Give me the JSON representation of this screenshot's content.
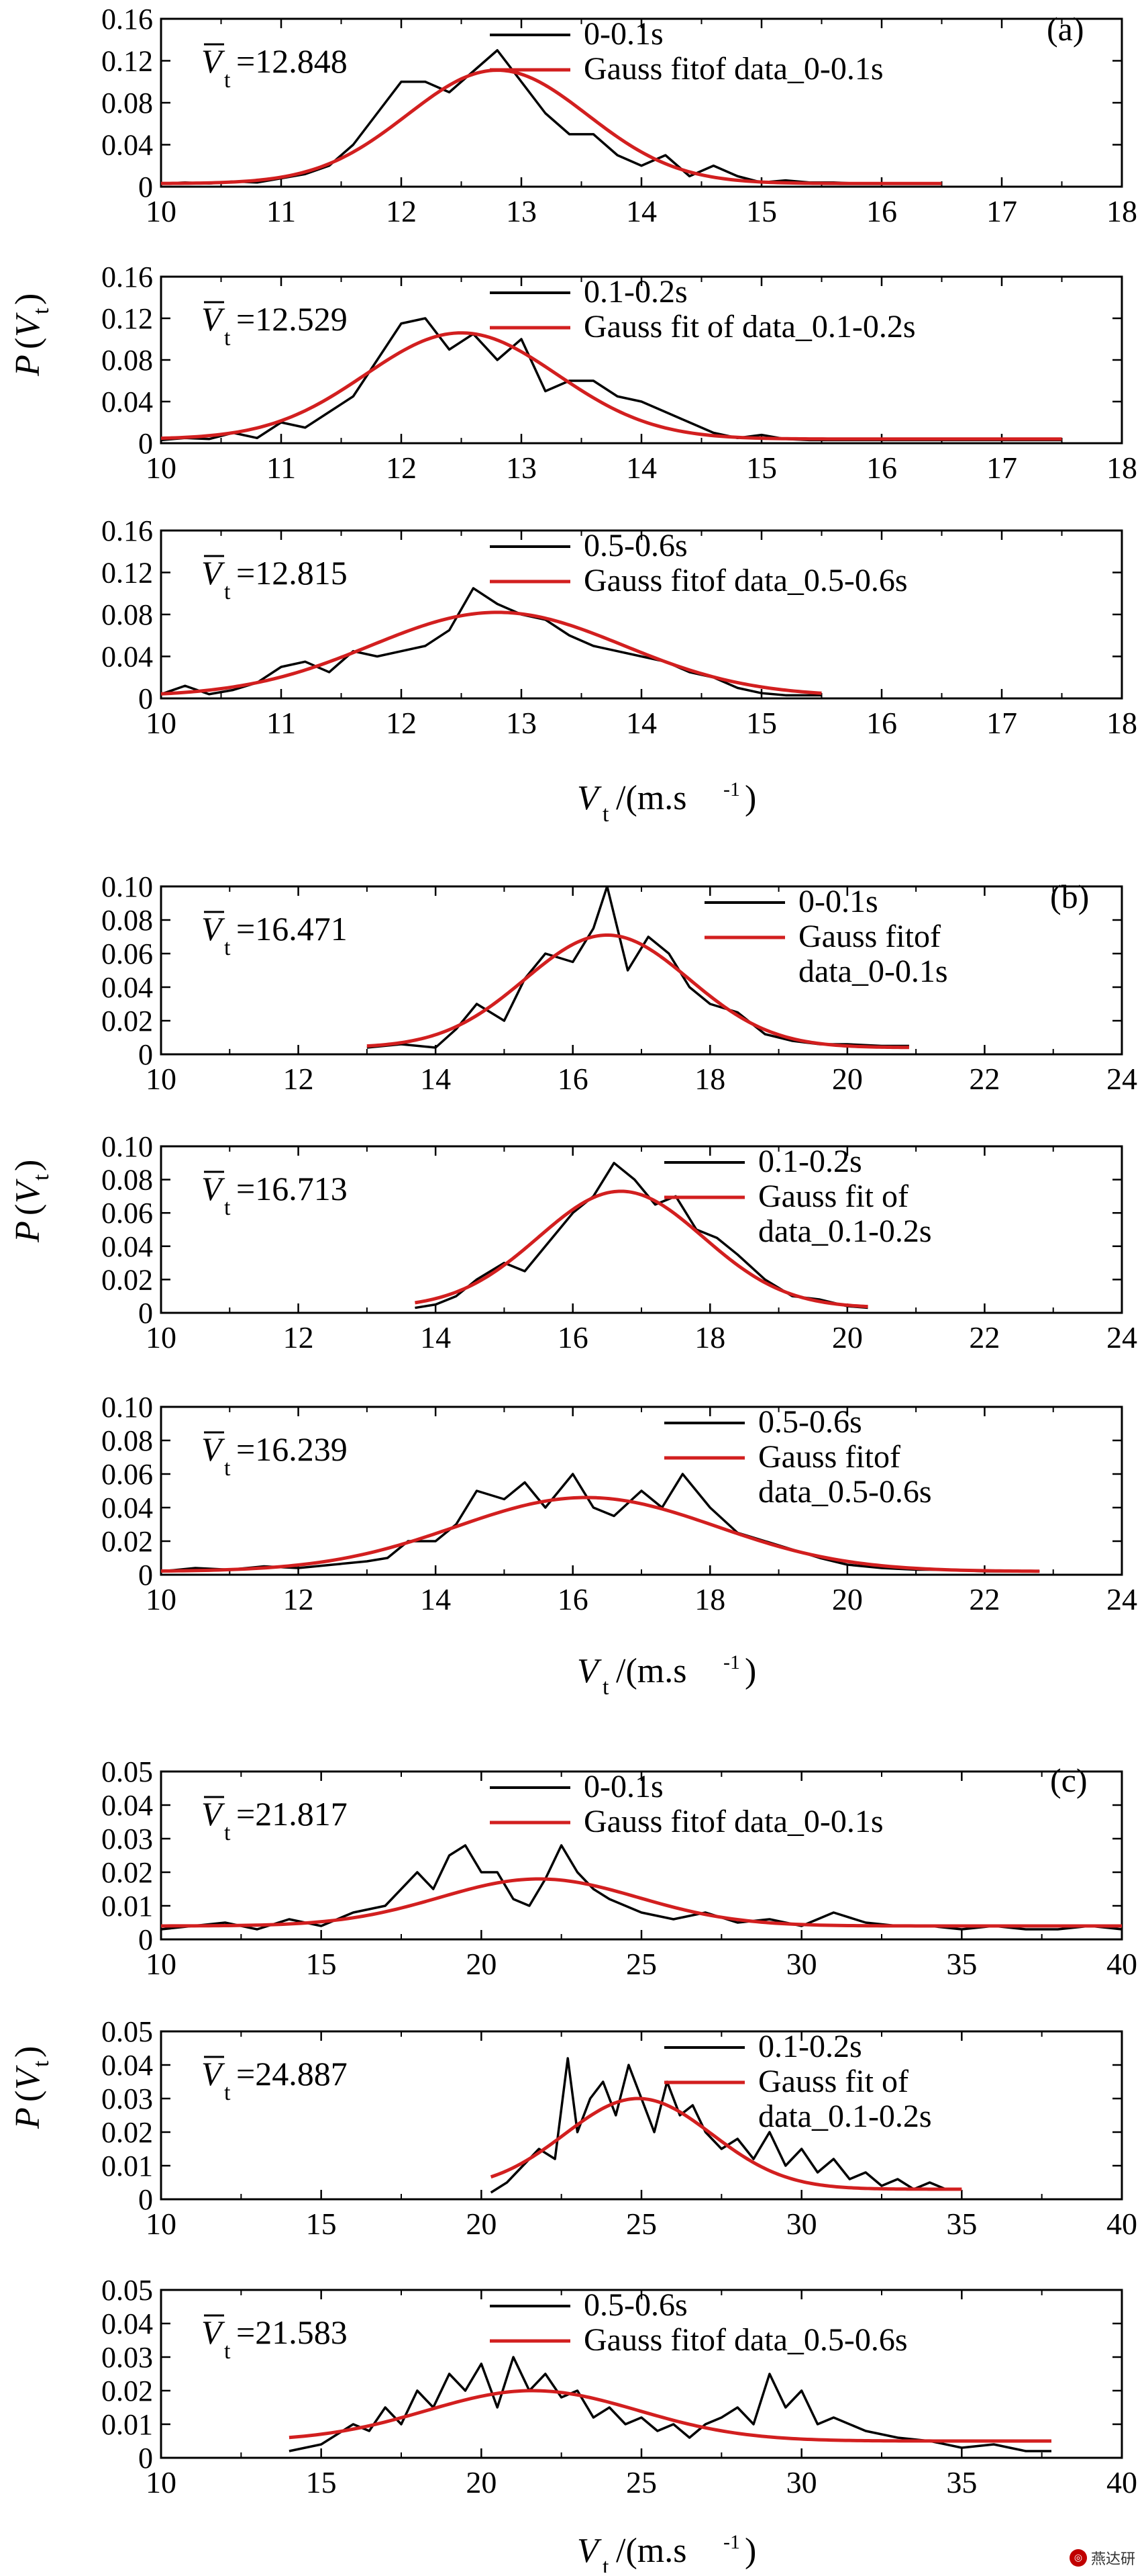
{
  "colors": {
    "data": "#000000",
    "fit": "#d21f1f",
    "axis": "#000000"
  },
  "watermark": {
    "text": "燕达研",
    "icon": "watermark-logo-icon"
  },
  "groups": [
    {
      "label": "(a)",
      "ylabel_main": "P",
      "ylabel_sub": "t",
      "xlabel_main": "V",
      "xlabel_sub": "t",
      "xlabel_unit": "/(m.s",
      "xlabel_exp": "-1",
      "xlabel_close": ")"
    },
    {
      "label": "(b)",
      "ylabel_main": "P",
      "ylabel_sub": "t",
      "xlabel_main": "V",
      "xlabel_sub": "t",
      "xlabel_unit": "/(m.s",
      "xlabel_exp": "-1",
      "xlabel_close": ")"
    },
    {
      "label": "(c)",
      "ylabel_main": "P",
      "ylabel_sub": "t",
      "xlabel_main": "V",
      "xlabel_sub": "t",
      "xlabel_unit": "/(m.s",
      "xlabel_exp": "-1",
      "xlabel_close": ")"
    }
  ],
  "chart_data": [
    {
      "type": "line",
      "group": 0,
      "xlim": [
        10,
        18
      ],
      "ylim": [
        0,
        0.16
      ],
      "xticks": [
        "10",
        "11",
        "12",
        "13",
        "14",
        "15",
        "16",
        "17",
        "18"
      ],
      "yticks": [
        "0",
        "0.04",
        "0.08",
        "0.12",
        "0.16"
      ],
      "mean_label": "=12.848",
      "legend": [
        "0-0.1s",
        "Gauss fitof  data_0-0.1s"
      ],
      "series": [
        {
          "name": "0-0.1s",
          "kind": "data",
          "x": [
            10,
            10.2,
            10.4,
            10.6,
            10.8,
            11,
            11.2,
            11.4,
            11.6,
            11.8,
            12,
            12.2,
            12.4,
            12.6,
            12.8,
            13,
            13.2,
            13.4,
            13.6,
            13.8,
            14,
            14.2,
            14.4,
            14.6,
            14.8,
            15,
            15.2,
            15.4,
            15.6,
            15.8,
            16,
            16.2,
            16.5
          ],
          "y": [
            0.003,
            0.004,
            0.003,
            0.005,
            0.004,
            0.008,
            0.012,
            0.02,
            0.04,
            0.07,
            0.1,
            0.1,
            0.09,
            0.11,
            0.13,
            0.1,
            0.07,
            0.05,
            0.05,
            0.03,
            0.02,
            0.03,
            0.01,
            0.02,
            0.01,
            0.004,
            0.006,
            0.004,
            0.004,
            0.003,
            0.003,
            0.003,
            0.003
          ]
        },
        {
          "name": "Gauss fitof  data_0-0.1s",
          "kind": "fit",
          "mean": 12.8,
          "sigma": 0.75,
          "amp": 0.108,
          "base": 0.003,
          "range": [
            10,
            16.5
          ]
        }
      ]
    },
    {
      "type": "line",
      "group": 0,
      "xlim": [
        10,
        18
      ],
      "ylim": [
        0,
        0.16
      ],
      "xticks": [
        "10",
        "11",
        "12",
        "13",
        "14",
        "15",
        "16",
        "17",
        "18"
      ],
      "yticks": [
        "0",
        "0.04",
        "0.08",
        "0.12",
        "0.16"
      ],
      "mean_label": "=12.529",
      "legend": [
        "0.1-0.2s",
        "Gauss fit of  data_0.1-0.2s"
      ],
      "series": [
        {
          "name": "0.1-0.2s",
          "kind": "data",
          "x": [
            10,
            10.2,
            10.4,
            10.6,
            10.8,
            11,
            11.2,
            11.4,
            11.6,
            11.8,
            12,
            12.2,
            12.4,
            12.6,
            12.8,
            13,
            13.2,
            13.4,
            13.6,
            13.8,
            14,
            14.2,
            14.4,
            14.6,
            14.8,
            15,
            15.2,
            15.4,
            15.6,
            15.8,
            16,
            16.5,
            17,
            17.5
          ],
          "y": [
            0.003,
            0.005,
            0.004,
            0.01,
            0.005,
            0.02,
            0.015,
            0.03,
            0.045,
            0.08,
            0.115,
            0.12,
            0.09,
            0.105,
            0.08,
            0.1,
            0.05,
            0.06,
            0.06,
            0.045,
            0.04,
            0.03,
            0.02,
            0.01,
            0.005,
            0.008,
            0.004,
            0.003,
            0.003,
            0.003,
            0.003,
            0.003,
            0.003,
            0.003
          ]
        },
        {
          "name": "Gauss fit of  data_0.1-0.2s",
          "kind": "fit",
          "mean": 12.5,
          "sigma": 0.8,
          "amp": 0.102,
          "base": 0.004,
          "range": [
            10,
            17.5
          ]
        }
      ]
    },
    {
      "type": "line",
      "group": 0,
      "xlim": [
        10,
        18
      ],
      "ylim": [
        0,
        0.16
      ],
      "xticks": [
        "10",
        "11",
        "12",
        "13",
        "14",
        "15",
        "16",
        "17",
        "18"
      ],
      "yticks": [
        "0",
        "0.04",
        "0.08",
        "0.12",
        "0.16"
      ],
      "mean_label": "=12.815",
      "legend": [
        "0.5-0.6s",
        "Gauss fitof  data_0.5-0.6s"
      ],
      "series": [
        {
          "name": "0.5-0.6s",
          "kind": "data",
          "x": [
            10,
            10.2,
            10.4,
            10.6,
            10.8,
            11,
            11.2,
            11.4,
            11.6,
            11.8,
            12,
            12.2,
            12.4,
            12.6,
            12.8,
            13,
            13.2,
            13.4,
            13.6,
            13.8,
            14,
            14.2,
            14.4,
            14.6,
            14.8,
            15,
            15.2,
            15.5
          ],
          "y": [
            0.004,
            0.012,
            0.004,
            0.008,
            0.015,
            0.03,
            0.035,
            0.025,
            0.045,
            0.04,
            0.045,
            0.05,
            0.065,
            0.105,
            0.09,
            0.08,
            0.075,
            0.06,
            0.05,
            0.045,
            0.04,
            0.035,
            0.025,
            0.02,
            0.01,
            0.005,
            0.003,
            0.003
          ]
        },
        {
          "name": "Gauss fitof  data_0.5-0.6s",
          "kind": "fit",
          "mean": 12.8,
          "sigma": 1.05,
          "amp": 0.08,
          "base": 0.002,
          "range": [
            10,
            15.5
          ]
        }
      ]
    },
    {
      "type": "line",
      "group": 1,
      "xlim": [
        10,
        24
      ],
      "ylim": [
        0,
        0.1
      ],
      "xticks": [
        "10",
        "12",
        "14",
        "16",
        "18",
        "20",
        "22",
        "24"
      ],
      "yticks": [
        "0",
        "0.02",
        "0.04",
        "0.06",
        "0.08",
        "0.10"
      ],
      "mean_label": "=16.471",
      "legend": [
        "0-0.1s",
        "Gauss fitof",
        "data_0-0.1s"
      ],
      "series": [
        {
          "name": "0-0.1s",
          "kind": "data",
          "x": [
            13,
            13.5,
            14,
            14.3,
            14.6,
            15,
            15.3,
            15.6,
            16,
            16.3,
            16.5,
            16.8,
            17.1,
            17.4,
            17.7,
            18,
            18.4,
            18.8,
            19.2,
            19.6,
            20,
            20.5,
            20.9
          ],
          "y": [
            0.004,
            0.006,
            0.004,
            0.015,
            0.03,
            0.02,
            0.045,
            0.06,
            0.055,
            0.075,
            0.1,
            0.05,
            0.07,
            0.06,
            0.04,
            0.03,
            0.025,
            0.012,
            0.008,
            0.006,
            0.006,
            0.005,
            0.005
          ]
        },
        {
          "name": "Gauss fitof data_0-0.1s",
          "kind": "fit",
          "mean": 16.5,
          "sigma": 1.2,
          "amp": 0.067,
          "base": 0.004,
          "range": [
            13,
            20.9
          ]
        }
      ]
    },
    {
      "type": "line",
      "group": 1,
      "xlim": [
        10,
        24
      ],
      "ylim": [
        0,
        0.1
      ],
      "xticks": [
        "10",
        "12",
        "14",
        "16",
        "18",
        "20",
        "22",
        "24"
      ],
      "yticks": [
        "0",
        "0.02",
        "0.04",
        "0.06",
        "0.08",
        "0.10"
      ],
      "mean_label": "=16.713",
      "legend": [
        "0.1-0.2s",
        "Gauss fit of",
        "data_0.1-0.2s"
      ],
      "series": [
        {
          "name": "0.1-0.2s",
          "kind": "data",
          "x": [
            13.7,
            14,
            14.3,
            14.6,
            15,
            15.3,
            15.6,
            16,
            16.3,
            16.6,
            16.9,
            17.2,
            17.5,
            17.8,
            18.1,
            18.4,
            18.8,
            19.2,
            19.6,
            20,
            20.3
          ],
          "y": [
            0.003,
            0.005,
            0.01,
            0.02,
            0.03,
            0.025,
            0.04,
            0.06,
            0.07,
            0.09,
            0.08,
            0.065,
            0.07,
            0.05,
            0.045,
            0.035,
            0.02,
            0.01,
            0.008,
            0.004,
            0.003
          ]
        },
        {
          "name": "Gauss fit of data_0.1-0.2s",
          "kind": "fit",
          "mean": 16.7,
          "sigma": 1.2,
          "amp": 0.07,
          "base": 0.003,
          "range": [
            13.7,
            20.3
          ]
        }
      ]
    },
    {
      "type": "line",
      "group": 1,
      "xlim": [
        10,
        24
      ],
      "ylim": [
        0,
        0.1
      ],
      "xticks": [
        "10",
        "12",
        "14",
        "16",
        "18",
        "20",
        "22",
        "24"
      ],
      "yticks": [
        "0",
        "0.02",
        "0.04",
        "0.06",
        "0.08",
        "0.10"
      ],
      "mean_label": "=16.239",
      "legend": [
        "0.5-0.6s",
        "Gauss fitof",
        "data_0.5-0.6s"
      ],
      "series": [
        {
          "name": "0.5-0.6s",
          "kind": "data",
          "x": [
            10,
            10.5,
            11,
            11.5,
            12,
            12.5,
            13,
            13.3,
            13.6,
            14,
            14.3,
            14.6,
            15,
            15.3,
            15.6,
            16,
            16.3,
            16.6,
            17,
            17.3,
            17.6,
            18,
            18.4,
            18.8,
            19.2,
            19.6,
            20,
            20.5,
            21,
            21.5,
            22,
            22.5,
            22.8
          ],
          "y": [
            0.002,
            0.004,
            0.003,
            0.005,
            0.004,
            0.006,
            0.008,
            0.01,
            0.02,
            0.02,
            0.03,
            0.05,
            0.045,
            0.055,
            0.04,
            0.06,
            0.04,
            0.035,
            0.05,
            0.04,
            0.06,
            0.04,
            0.025,
            0.02,
            0.015,
            0.01,
            0.006,
            0.004,
            0.003,
            0.003,
            0.002,
            0.002,
            0.002
          ]
        },
        {
          "name": "Gauss fitof data_0.5-0.6s",
          "kind": "fit",
          "mean": 16.2,
          "sigma": 1.9,
          "amp": 0.044,
          "base": 0.002,
          "range": [
            10,
            22.8
          ]
        }
      ]
    },
    {
      "type": "line",
      "group": 2,
      "xlim": [
        10,
        40
      ],
      "ylim": [
        0,
        0.05
      ],
      "xticks": [
        "10",
        "15",
        "20",
        "25",
        "30",
        "35",
        "40"
      ],
      "yticks": [
        "0",
        "0.01",
        "0.02",
        "0.03",
        "0.04",
        "0.05"
      ],
      "mean_label": "=21.817",
      "legend": [
        "0-0.1s",
        "Gauss fitof  data_0-0.1s"
      ],
      "series": [
        {
          "name": "0-0.1s",
          "kind": "data",
          "x": [
            10,
            11,
            12,
            13,
            14,
            15,
            16,
            17,
            18,
            18.5,
            19,
            19.5,
            20,
            20.5,
            21,
            21.5,
            22,
            22.5,
            23,
            23.5,
            24,
            24.5,
            25,
            26,
            27,
            28,
            29,
            30,
            31,
            32,
            33,
            34,
            35,
            36,
            37,
            38,
            39,
            40
          ],
          "y": [
            0.003,
            0.004,
            0.005,
            0.003,
            0.006,
            0.004,
            0.008,
            0.01,
            0.02,
            0.015,
            0.025,
            0.028,
            0.02,
            0.02,
            0.012,
            0.01,
            0.018,
            0.028,
            0.02,
            0.015,
            0.012,
            0.01,
            0.008,
            0.006,
            0.008,
            0.005,
            0.006,
            0.004,
            0.008,
            0.005,
            0.004,
            0.004,
            0.003,
            0.004,
            0.003,
            0.003,
            0.004,
            0.003
          ]
        },
        {
          "name": "Gauss fitof  data_0-0.1s",
          "kind": "fit",
          "mean": 21.8,
          "sigma": 3.1,
          "amp": 0.014,
          "base": 0.004,
          "range": [
            10,
            40
          ]
        }
      ]
    },
    {
      "type": "line",
      "group": 2,
      "xlim": [
        10,
        40
      ],
      "ylim": [
        0,
        0.05
      ],
      "xticks": [
        "10",
        "15",
        "20",
        "25",
        "30",
        "35",
        "40"
      ],
      "yticks": [
        "0",
        "0.01",
        "0.02",
        "0.03",
        "0.04",
        "0.05"
      ],
      "mean_label": "=24.887",
      "legend": [
        "0.1-0.2s",
        "Gauss fit of",
        "data_0.1-0.2s"
      ],
      "series": [
        {
          "name": "0.1-0.2s",
          "kind": "data",
          "x": [
            20.3,
            20.8,
            21.3,
            21.8,
            22.3,
            22.7,
            23,
            23.4,
            23.8,
            24.2,
            24.6,
            25,
            25.4,
            25.8,
            26.2,
            26.6,
            27,
            27.5,
            28,
            28.5,
            29,
            29.5,
            30,
            30.5,
            31,
            31.5,
            32,
            32.5,
            33,
            33.5,
            34,
            34.5
          ],
          "y": [
            0.002,
            0.005,
            0.01,
            0.015,
            0.012,
            0.042,
            0.02,
            0.03,
            0.035,
            0.025,
            0.04,
            0.03,
            0.02,
            0.035,
            0.025,
            0.028,
            0.02,
            0.015,
            0.018,
            0.012,
            0.02,
            0.01,
            0.015,
            0.008,
            0.012,
            0.006,
            0.008,
            0.004,
            0.006,
            0.003,
            0.005,
            0.003
          ]
        },
        {
          "name": "Gauss fit of data_0.1-0.2s",
          "kind": "fit",
          "mean": 24.9,
          "sigma": 2.3,
          "amp": 0.027,
          "base": 0.003,
          "range": [
            20.3,
            35
          ]
        }
      ]
    },
    {
      "type": "line",
      "group": 2,
      "xlim": [
        10,
        40
      ],
      "ylim": [
        0,
        0.05
      ],
      "xticks": [
        "10",
        "15",
        "20",
        "25",
        "30",
        "35",
        "40"
      ],
      "yticks": [
        "0",
        "0.01",
        "0.02",
        "0.03",
        "0.04",
        "0.05"
      ],
      "mean_label": "=21.583",
      "legend": [
        "0.5-0.6s",
        "Gauss fitof  data_0.5-0.6s"
      ],
      "series": [
        {
          "name": "0.5-0.6s",
          "kind": "data",
          "x": [
            14,
            15,
            16,
            16.5,
            17,
            17.5,
            18,
            18.5,
            19,
            19.5,
            20,
            20.5,
            21,
            21.5,
            22,
            22.5,
            23,
            23.5,
            24,
            24.5,
            25,
            25.5,
            26,
            26.5,
            27,
            27.5,
            28,
            28.5,
            29,
            29.5,
            30,
            30.5,
            31,
            32,
            33,
            34,
            35,
            36,
            37,
            37.8
          ],
          "y": [
            0.002,
            0.004,
            0.01,
            0.008,
            0.015,
            0.01,
            0.02,
            0.015,
            0.025,
            0.02,
            0.028,
            0.015,
            0.03,
            0.02,
            0.025,
            0.018,
            0.02,
            0.012,
            0.015,
            0.01,
            0.012,
            0.008,
            0.01,
            0.006,
            0.01,
            0.012,
            0.015,
            0.01,
            0.025,
            0.015,
            0.02,
            0.01,
            0.012,
            0.008,
            0.006,
            0.005,
            0.003,
            0.004,
            0.002,
            0.002
          ]
        },
        {
          "name": "Gauss fitof  data_0.5-0.6s",
          "kind": "fit",
          "mean": 21.6,
          "sigma": 3.3,
          "amp": 0.015,
          "base": 0.005,
          "range": [
            14,
            37.8
          ]
        }
      ]
    }
  ]
}
